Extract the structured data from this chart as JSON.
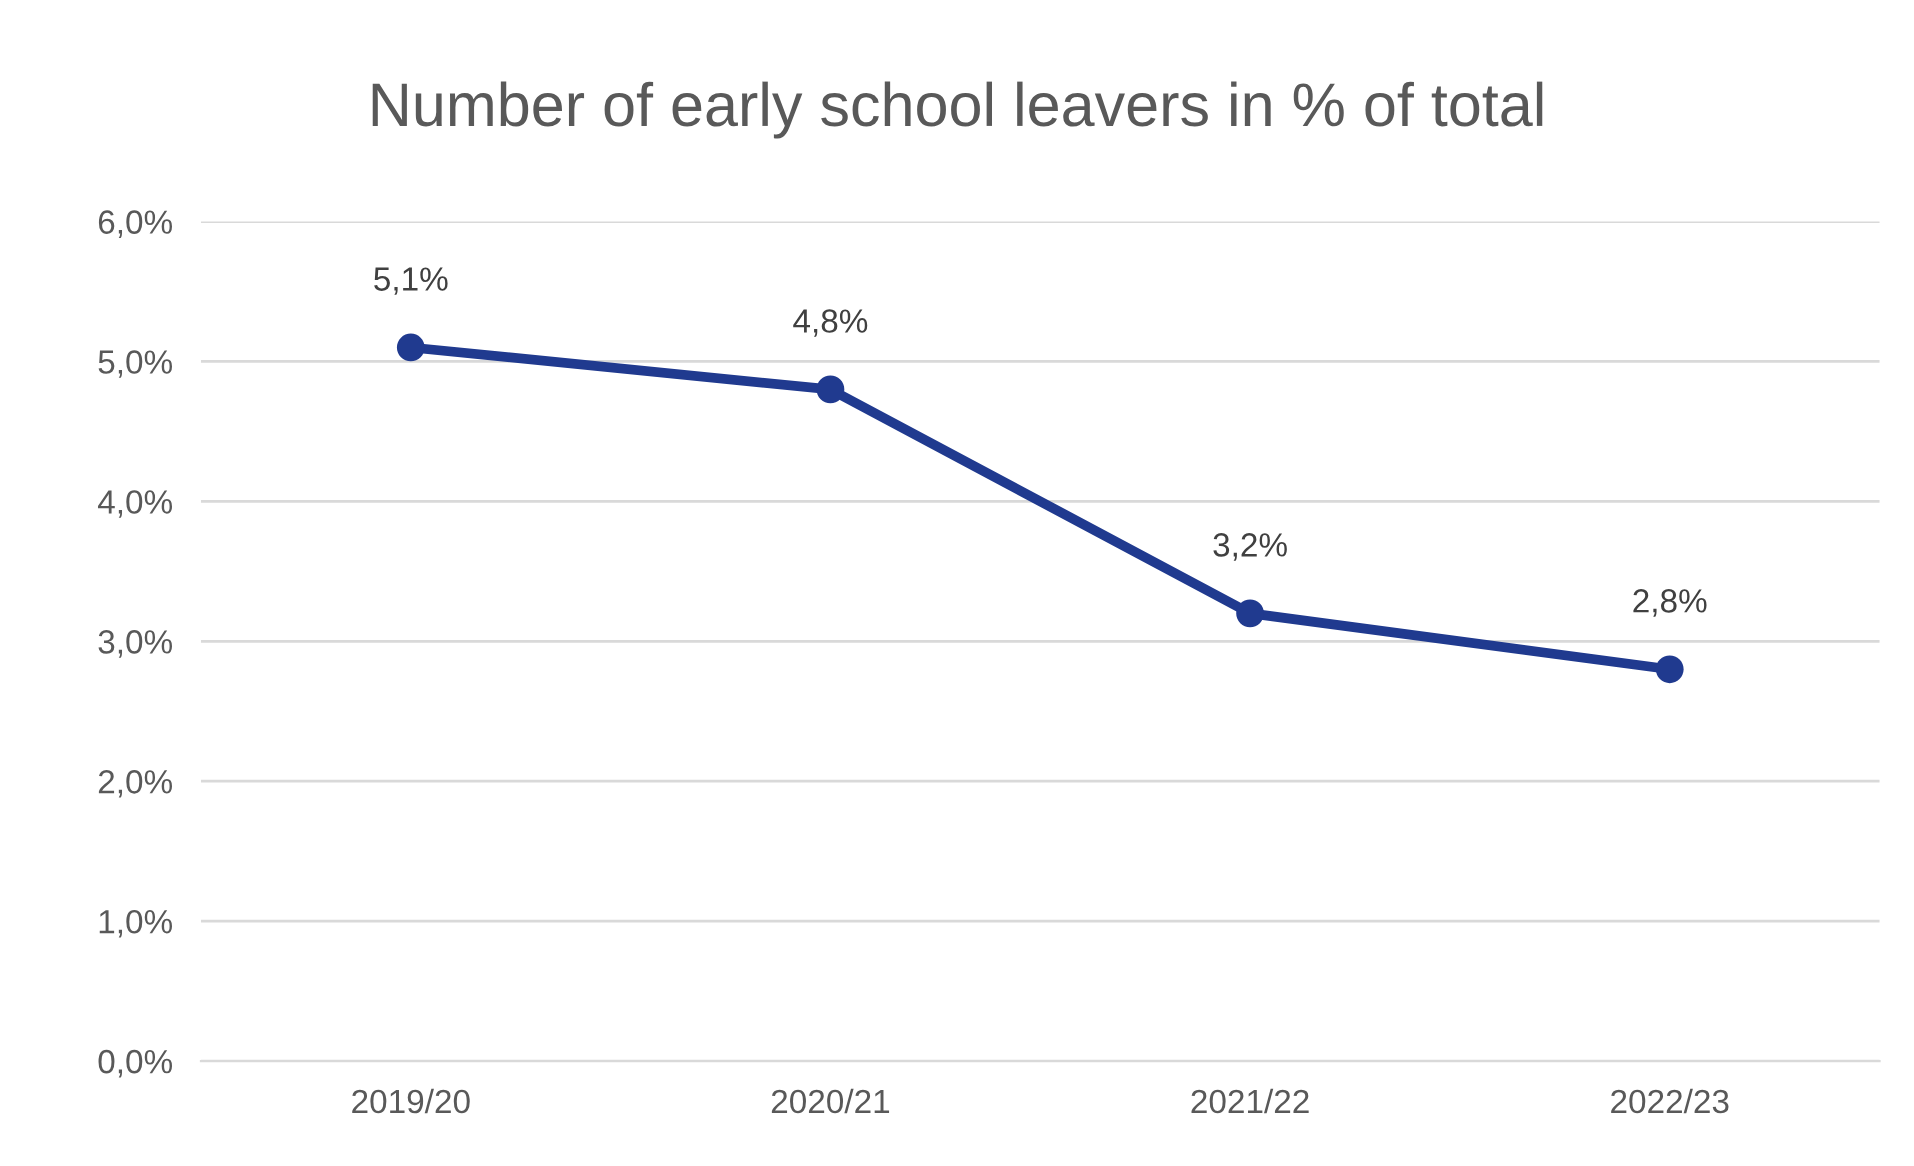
{
  "chart_data": {
    "type": "line",
    "title": "Number of early school leavers in % of total",
    "categories": [
      "2019/20",
      "2020/21",
      "2021/22",
      "2022/23"
    ],
    "series": [
      {
        "color": "#203a8f",
        "values": [
          5.1,
          4.8,
          3.2,
          2.8
        ],
        "value_labels": [
          "5,1%",
          "4,8%",
          "3,2%",
          "2,8%"
        ]
      }
    ],
    "ylim": [
      0,
      6
    ],
    "yticks": [
      {
        "value": 0,
        "label": "0,0%"
      },
      {
        "value": 1,
        "label": "1,0%"
      },
      {
        "value": 2,
        "label": "2,0%"
      },
      {
        "value": 3,
        "label": "3,0%"
      },
      {
        "value": 4,
        "label": "4,0%"
      },
      {
        "value": 5,
        "label": "5,0%"
      },
      {
        "value": 6,
        "label": "6,0%"
      }
    ],
    "grid": "y",
    "marker": "circle",
    "line_style": "solid",
    "legend": false
  }
}
